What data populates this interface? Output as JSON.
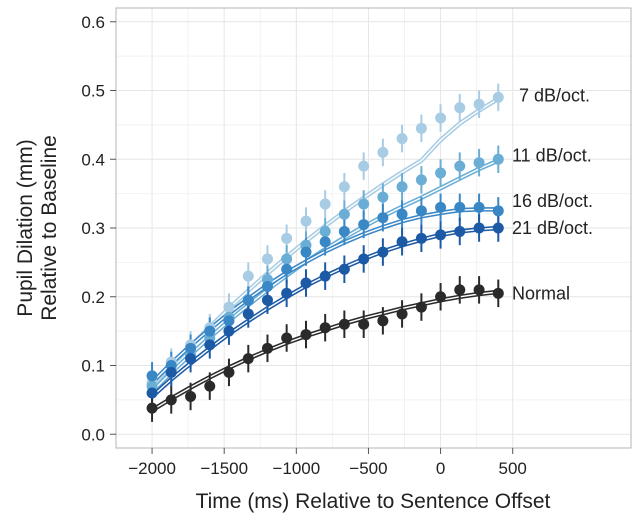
{
  "chart_data": {
    "type": "scatter",
    "title": "",
    "xlabel": "Time (ms) Relative to Sentence Offset",
    "ylabel": [
      "Pupil Dilation (mm)",
      "Relative to Baseline"
    ],
    "xlim": [
      -2250,
      1320
    ],
    "ylim": [
      -0.02,
      0.62
    ],
    "xticks": [
      -2000,
      -1500,
      -1000,
      -500,
      0,
      500
    ],
    "xtick_labels": [
      "−2000",
      "−1500",
      "−1000",
      "−500",
      "0",
      "500"
    ],
    "yticks": [
      0.0,
      0.1,
      0.2,
      0.3,
      0.4,
      0.5,
      0.6
    ],
    "ytick_labels": [
      "0.0",
      "0.1",
      "0.2",
      "0.3",
      "0.4",
      "0.5",
      "0.6"
    ],
    "grid": true,
    "legend": "direct labels at right end of series",
    "x": [
      -2000,
      -1867,
      -1733,
      -1600,
      -1467,
      -1333,
      -1200,
      -1067,
      -933,
      -800,
      -667,
      -533,
      -400,
      -267,
      -133,
      0,
      133,
      267,
      400
    ],
    "series": [
      {
        "name": "7 dB/oct.",
        "color": "#a8cce4",
        "values": [
          0.075,
          0.105,
          0.13,
          0.155,
          0.185,
          0.23,
          0.255,
          0.285,
          0.31,
          0.335,
          0.36,
          0.39,
          0.41,
          0.43,
          0.445,
          0.46,
          0.475,
          0.48,
          0.49
        ],
        "error": 0.02,
        "fit": [
          0.07,
          0.1,
          0.128,
          0.156,
          0.183,
          0.209,
          0.234,
          0.258,
          0.281,
          0.303,
          0.324,
          0.344,
          0.363,
          0.381,
          0.398,
          0.428,
          0.452,
          0.471,
          0.488
        ]
      },
      {
        "name": "11 dB/oct.",
        "color": "#6aaed6",
        "values": [
          0.07,
          0.09,
          0.115,
          0.14,
          0.17,
          0.195,
          0.225,
          0.255,
          0.275,
          0.295,
          0.32,
          0.335,
          0.345,
          0.36,
          0.37,
          0.38,
          0.39,
          0.395,
          0.4
        ],
        "error": 0.02,
        "fit": [
          0.062,
          0.09,
          0.116,
          0.141,
          0.165,
          0.188,
          0.21,
          0.231,
          0.251,
          0.269,
          0.286,
          0.302,
          0.317,
          0.331,
          0.344,
          0.358,
          0.372,
          0.386,
          0.398
        ]
      },
      {
        "name": "16 dB/oct.",
        "color": "#3a87c6",
        "values": [
          0.085,
          0.1,
          0.125,
          0.15,
          0.165,
          0.195,
          0.215,
          0.24,
          0.265,
          0.28,
          0.295,
          0.305,
          0.315,
          0.32,
          0.325,
          0.33,
          0.33,
          0.33,
          0.325
        ],
        "error": 0.02,
        "fit": [
          0.075,
          0.103,
          0.129,
          0.153,
          0.176,
          0.197,
          0.217,
          0.235,
          0.251,
          0.266,
          0.279,
          0.291,
          0.301,
          0.31,
          0.317,
          0.322,
          0.326,
          0.327,
          0.327
        ]
      },
      {
        "name": "21 dB/oct.",
        "color": "#1c5aa6",
        "values": [
          0.06,
          0.09,
          0.11,
          0.13,
          0.15,
          0.175,
          0.195,
          0.205,
          0.22,
          0.23,
          0.24,
          0.255,
          0.265,
          0.28,
          0.285,
          0.29,
          0.295,
          0.3,
          0.3
        ],
        "error": 0.02,
        "fit": [
          0.055,
          0.08,
          0.103,
          0.125,
          0.146,
          0.165,
          0.183,
          0.2,
          0.216,
          0.23,
          0.243,
          0.255,
          0.266,
          0.275,
          0.283,
          0.29,
          0.295,
          0.298,
          0.3
        ]
      },
      {
        "name": "Normal",
        "color": "#2a2a2a",
        "values": [
          0.038,
          0.05,
          0.055,
          0.07,
          0.09,
          0.11,
          0.125,
          0.14,
          0.145,
          0.155,
          0.16,
          0.16,
          0.165,
          0.175,
          0.185,
          0.2,
          0.21,
          0.21,
          0.205
        ],
        "error": 0.02,
        "fit": [
          0.035,
          0.052,
          0.068,
          0.083,
          0.097,
          0.11,
          0.122,
          0.133,
          0.143,
          0.152,
          0.161,
          0.169,
          0.176,
          0.183,
          0.189,
          0.195,
          0.2,
          0.204,
          0.207
        ]
      }
    ]
  }
}
